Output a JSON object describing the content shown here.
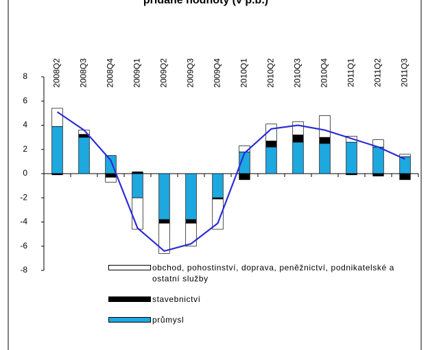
{
  "chart_data": {
    "type": "bar",
    "stacked": true,
    "title": "přidané hodnoty (v p.b.)",
    "categories": [
      "2008Q2",
      "2008Q3",
      "2008Q4",
      "2009Q1",
      "2009Q2",
      "2009Q3",
      "2009Q4",
      "2010Q1",
      "2010Q2",
      "2010Q3",
      "2010Q4",
      "2011Q1",
      "2011Q2",
      "2011Q3"
    ],
    "series": [
      {
        "name": "průmysl",
        "color": "#1ea8e0",
        "values": [
          3.9,
          3.0,
          1.5,
          -2.0,
          -3.8,
          -3.8,
          -2.0,
          1.8,
          2.2,
          2.6,
          2.5,
          2.6,
          2.2,
          1.4
        ]
      },
      {
        "name": "stavebnictví",
        "color": "#000000",
        "values": [
          -0.1,
          0.25,
          -0.3,
          0.15,
          -0.3,
          -0.3,
          -0.1,
          -0.5,
          0.5,
          0.6,
          0.5,
          -0.1,
          -0.2,
          -0.5
        ]
      },
      {
        "name": "obchod, pohostinství, doprava, peněžnictví, podnikatelské a ostatní služby",
        "color": "#ffffff",
        "values": [
          1.5,
          0.35,
          -0.4,
          -2.6,
          -2.5,
          -1.9,
          -2.5,
          0.5,
          1.4,
          1.1,
          1.8,
          0.5,
          0.6,
          0.2
        ]
      },
      {
        "type": "line",
        "color": "#2b2bd6",
        "values": [
          5.1,
          3.6,
          1.1,
          -4.5,
          -6.4,
          -5.8,
          -4.1,
          1.7,
          3.7,
          4.0,
          3.6,
          2.9,
          2.2,
          1.2
        ]
      }
    ],
    "ylim": [
      -8,
      8
    ],
    "yticks": [
      -8,
      -6,
      -4,
      -2,
      0,
      2,
      4,
      6,
      8
    ],
    "grid": false
  }
}
